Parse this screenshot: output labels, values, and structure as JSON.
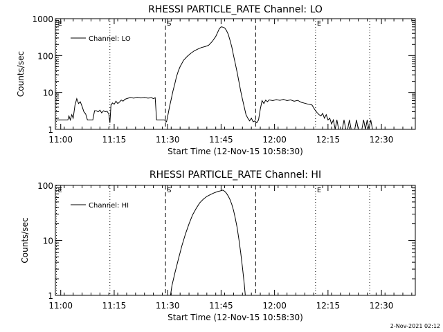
{
  "footer": {
    "timestamp": "2-Nov-2021 02:12"
  },
  "chart_data": [
    {
      "type": "line",
      "title": "RHESSI PARTICLE_RATE Channel: LO",
      "xlabel": "Start Time (12-Nov-15 10:58:30)",
      "ylabel": "Counts/sec",
      "yscale": "log",
      "ylim": [
        1,
        1000
      ],
      "xlim_minutes": [
        0,
        101
      ],
      "x_ticks": [
        {
          "t": 1.5,
          "label": "11:00"
        },
        {
          "t": 16.5,
          "label": "11:15"
        },
        {
          "t": 31.5,
          "label": "11:30"
        },
        {
          "t": 46.5,
          "label": "11:45"
        },
        {
          "t": 61.5,
          "label": "12:00"
        },
        {
          "t": 76.5,
          "label": "12:15"
        },
        {
          "t": 91.5,
          "label": "12:30"
        }
      ],
      "y_ticks": [
        {
          "v": 1,
          "label": "1"
        },
        {
          "v": 10,
          "label": "10"
        },
        {
          "v": 100,
          "label": "100"
        },
        {
          "v": 1000,
          "label": "1000"
        }
      ],
      "legend": "Channel: LO",
      "markers": [
        {
          "t": 0.3,
          "label": "E",
          "style": "dotted"
        },
        {
          "t": 15.3,
          "label": "",
          "style": "dotted"
        },
        {
          "t": 30.9,
          "label": "S",
          "style": "dashed"
        },
        {
          "t": 56.2,
          "label": "",
          "style": "dashed"
        },
        {
          "t": 73.0,
          "label": "E",
          "style": "dotted"
        },
        {
          "t": 88.2,
          "label": "",
          "style": "dotted"
        }
      ],
      "series": [
        {
          "name": "Channel: LO",
          "points": [
            [
              0,
              1.8
            ],
            [
              3.5,
              1.8
            ],
            [
              3.8,
              2.3
            ],
            [
              4.2,
              1.8
            ],
            [
              4.6,
              2.5
            ],
            [
              5.0,
              2.0
            ],
            [
              5.5,
              4.5
            ],
            [
              6.0,
              6.8
            ],
            [
              6.5,
              5.0
            ],
            [
              7.0,
              5.6
            ],
            [
              7.5,
              4.2
            ],
            [
              8.0,
              3.0
            ],
            [
              8.5,
              2.6
            ],
            [
              9.0,
              1.8
            ],
            [
              10.5,
              1.8
            ],
            [
              11.0,
              3.2
            ],
            [
              11.5,
              3.2
            ],
            [
              12.0,
              3.0
            ],
            [
              12.5,
              3.3
            ],
            [
              13.0,
              2.8
            ],
            [
              13.5,
              3.2
            ],
            [
              14.0,
              3.0
            ],
            [
              14.5,
              3.1
            ],
            [
              15.0,
              2.6
            ],
            [
              15.3,
              1.5
            ],
            [
              15.6,
              4.5
            ],
            [
              16.0,
              5.2
            ],
            [
              16.5,
              4.8
            ],
            [
              17.0,
              5.8
            ],
            [
              17.5,
              5.0
            ],
            [
              18.0,
              5.5
            ],
            [
              18.5,
              6.2
            ],
            [
              19.0,
              5.8
            ],
            [
              19.5,
              6.5
            ],
            [
              20.0,
              6.8
            ],
            [
              21.0,
              7.3
            ],
            [
              22.0,
              7.0
            ],
            [
              23.0,
              7.4
            ],
            [
              24.0,
              7.1
            ],
            [
              25.0,
              7.3
            ],
            [
              26.0,
              7.0
            ],
            [
              27.0,
              7.2
            ],
            [
              27.5,
              6.8
            ],
            [
              28.0,
              7.2
            ],
            [
              28.4,
              1.8
            ],
            [
              30.6,
              1.8
            ],
            [
              31.2,
              1.6
            ],
            [
              31.6,
              2.5
            ],
            [
              32.0,
              4.0
            ],
            [
              32.5,
              6.5
            ],
            [
              33.0,
              11
            ],
            [
              33.5,
              17
            ],
            [
              34.0,
              27
            ],
            [
              34.5,
              38
            ],
            [
              35.0,
              50
            ],
            [
              36.0,
              75
            ],
            [
              37.0,
              95
            ],
            [
              38.0,
              115
            ],
            [
              39.0,
              135
            ],
            [
              40.0,
              150
            ],
            [
              41.0,
              165
            ],
            [
              42.0,
              175
            ],
            [
              43.0,
              190
            ],
            [
              44.0,
              240
            ],
            [
              45.0,
              330
            ],
            [
              45.5,
              420
            ],
            [
              46.0,
              530
            ],
            [
              46.5,
              600
            ],
            [
              47.0,
              590
            ],
            [
              47.5,
              560
            ],
            [
              48.0,
              480
            ],
            [
              48.5,
              380
            ],
            [
              49.0,
              260
            ],
            [
              49.5,
              170
            ],
            [
              50.0,
              100
            ],
            [
              50.5,
              60
            ],
            [
              51.0,
              35
            ],
            [
              51.5,
              20
            ],
            [
              52.0,
              11
            ],
            [
              52.5,
              6.5
            ],
            [
              53.0,
              4.0
            ],
            [
              53.5,
              2.5
            ],
            [
              54.0,
              2.0
            ],
            [
              54.5,
              1.7
            ],
            [
              55.0,
              2.0
            ],
            [
              55.5,
              1.6
            ],
            [
              56.0,
              1.7
            ],
            [
              56.5,
              1.5
            ],
            [
              57.0,
              1.8
            ],
            [
              57.5,
              3.5
            ],
            [
              58.0,
              6.0
            ],
            [
              58.5,
              5.0
            ],
            [
              59.0,
              6.2
            ],
            [
              59.5,
              5.6
            ],
            [
              60.0,
              6.3
            ],
            [
              61.0,
              6.0
            ],
            [
              62.0,
              6.4
            ],
            [
              63.0,
              6.1
            ],
            [
              64.0,
              6.5
            ],
            [
              65.0,
              6.0
            ],
            [
              66.0,
              6.3
            ],
            [
              67.0,
              5.8
            ],
            [
              68.0,
              6.1
            ],
            [
              69.0,
              5.4
            ],
            [
              70.0,
              5.1
            ],
            [
              71.0,
              4.8
            ],
            [
              72.0,
              4.6
            ],
            [
              72.5,
              3.8
            ],
            [
              73.0,
              3.2
            ],
            [
              73.5,
              2.8
            ],
            [
              74.0,
              2.5
            ],
            [
              74.5,
              2.3
            ],
            [
              75.0,
              2.7
            ],
            [
              75.5,
              2.0
            ],
            [
              76.0,
              2.5
            ],
            [
              76.5,
              1.8
            ],
            [
              77.0,
              2.0
            ],
            [
              77.5,
              1.4
            ],
            [
              78.0,
              1.8
            ],
            [
              78.5,
              1.0
            ],
            [
              79.0,
              1.8
            ],
            [
              79.5,
              1.0
            ],
            [
              80.5,
              1.0
            ],
            [
              81.0,
              1.8
            ],
            [
              81.5,
              1.0
            ],
            [
              82.0,
              1.0
            ],
            [
              82.5,
              1.8
            ],
            [
              83.0,
              1.0
            ],
            [
              84.0,
              1.0
            ],
            [
              84.5,
              1.8
            ],
            [
              85.0,
              1.0
            ],
            [
              86.0,
              1.0
            ],
            [
              86.5,
              1.8
            ],
            [
              87.0,
              1.0
            ],
            [
              87.5,
              1.8
            ],
            [
              88.0,
              1.0
            ],
            [
              88.5,
              1.8
            ],
            [
              89.0,
              1.0
            ]
          ]
        }
      ]
    },
    {
      "type": "line",
      "title": "RHESSI PARTICLE_RATE Channel: HI",
      "xlabel": "Start Time (12-Nov-15 10:58:30)",
      "ylabel": "Counts/sec",
      "yscale": "log",
      "ylim": [
        1,
        100
      ],
      "xlim_minutes": [
        0,
        101
      ],
      "x_ticks": [
        {
          "t": 1.5,
          "label": "11:00"
        },
        {
          "t": 16.5,
          "label": "11:15"
        },
        {
          "t": 31.5,
          "label": "11:30"
        },
        {
          "t": 46.5,
          "label": "11:45"
        },
        {
          "t": 61.5,
          "label": "12:00"
        },
        {
          "t": 76.5,
          "label": "12:15"
        },
        {
          "t": 91.5,
          "label": "12:30"
        }
      ],
      "y_ticks": [
        {
          "v": 1,
          "label": "1"
        },
        {
          "v": 10,
          "label": "10"
        },
        {
          "v": 100,
          "label": "100"
        }
      ],
      "legend": "Channel: HI",
      "markers": [
        {
          "t": 0.3,
          "label": "E",
          "style": "dotted"
        },
        {
          "t": 15.3,
          "label": "",
          "style": "dotted"
        },
        {
          "t": 30.9,
          "label": "S",
          "style": "dashed"
        },
        {
          "t": 56.2,
          "label": "",
          "style": "dashed"
        },
        {
          "t": 73.0,
          "label": "E",
          "style": "dotted"
        },
        {
          "t": 88.2,
          "label": "",
          "style": "dotted"
        }
      ],
      "series": [
        {
          "name": "Channel: HI",
          "points": [
            [
              32.3,
              1.0
            ],
            [
              32.7,
              1.5
            ],
            [
              33.5,
              2.5
            ],
            [
              34.5,
              4.5
            ],
            [
              35.5,
              8.0
            ],
            [
              36.5,
              13
            ],
            [
              37.5,
              20
            ],
            [
              38.5,
              29
            ],
            [
              39.5,
              38
            ],
            [
              40.5,
              48
            ],
            [
              41.5,
              56
            ],
            [
              42.5,
              63
            ],
            [
              43.5,
              68
            ],
            [
              44.5,
              73
            ],
            [
              45.5,
              77
            ],
            [
              46.5,
              80
            ],
            [
              47.0,
              82
            ],
            [
              47.5,
              78
            ],
            [
              48.0,
              72
            ],
            [
              48.5,
              64
            ],
            [
              49.0,
              55
            ],
            [
              49.5,
              45
            ],
            [
              50.0,
              35
            ],
            [
              50.5,
              25
            ],
            [
              51.0,
              17
            ],
            [
              51.5,
              10.5
            ],
            [
              52.0,
              6.0
            ],
            [
              52.5,
              3.2
            ],
            [
              53.0,
              1.6
            ],
            [
              53.3,
              1.0
            ]
          ]
        }
      ]
    }
  ]
}
